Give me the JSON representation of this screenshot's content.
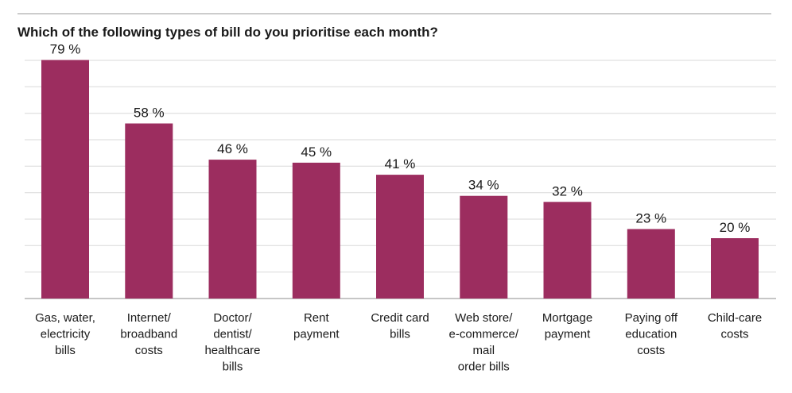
{
  "title": "Which of the following types of bill do you prioritise each month?",
  "colors": {
    "bar": "#9c2d5f",
    "grid": "#d9d9d9",
    "baseline": "#8c8c8c",
    "rule": "#9a9a9a",
    "text": "#1a1a1a"
  },
  "chart_data": {
    "type": "bar",
    "title": "Which of the following types of bill do you prioritise each month?",
    "xlabel": "",
    "ylabel": "",
    "ylim": [
      0,
      78.9
    ],
    "grid": true,
    "value_suffix": " %",
    "categories": [
      [
        "Gas, water,",
        "electricity",
        "bills"
      ],
      [
        "Internet/",
        "broadband",
        "costs"
      ],
      [
        "Doctor/",
        "dentist/",
        "healthcare",
        "bills"
      ],
      [
        "Rent",
        "payment"
      ],
      [
        "Credit card",
        "bills"
      ],
      [
        "Web store/",
        "e-commerce/",
        "mail",
        "order bills"
      ],
      [
        "Mortgage",
        "payment"
      ],
      [
        "Paying off",
        "education",
        "costs"
      ],
      [
        "Child-care",
        "costs"
      ]
    ],
    "values": [
      79,
      58,
      46,
      45,
      41,
      34,
      32,
      23,
      20
    ]
  }
}
